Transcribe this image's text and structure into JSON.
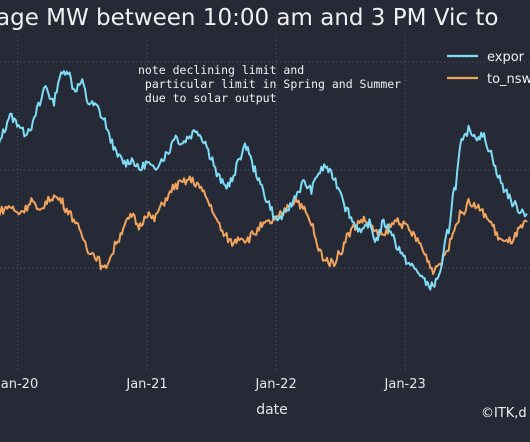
{
  "chart_data": {
    "type": "line",
    "title": "age MW between 10:00 am and 3 PM Vic to",
    "xlabel": "date",
    "ylabel": "",
    "x_ticks": [
      "Jan-20",
      "Jan-21",
      "Jan-22",
      "Jan-23"
    ],
    "x_range": [
      "2019-11-01",
      "2023-12-20"
    ],
    "y_range": [
      0,
      100
    ],
    "grid": true,
    "legend_position": "top-right",
    "annotation": "note declining limit and\n particular limit in Spring and Summer\n due to solar output",
    "credit": "©ITK,d",
    "series": [
      {
        "name": "expor",
        "color": "#7fdcf5",
        "points": [
          [
            "2019-11-01",
            64
          ],
          [
            "2019-11-20",
            71
          ],
          [
            "2019-12-10",
            76
          ],
          [
            "2020-01-01",
            74
          ],
          [
            "2020-01-20",
            71
          ],
          [
            "2020-02-10",
            73
          ],
          [
            "2020-03-01",
            79
          ],
          [
            "2020-03-20",
            85
          ],
          [
            "2020-04-10",
            80
          ],
          [
            "2020-05-01",
            88
          ],
          [
            "2020-05-20",
            90
          ],
          [
            "2020-06-10",
            84
          ],
          [
            "2020-07-01",
            86
          ],
          [
            "2020-07-20",
            80
          ],
          [
            "2020-08-10",
            79
          ],
          [
            "2020-09-01",
            75
          ],
          [
            "2020-09-20",
            69
          ],
          [
            "2020-10-10",
            64
          ],
          [
            "2020-11-01",
            62
          ],
          [
            "2020-11-20",
            63
          ],
          [
            "2020-12-10",
            60
          ],
          [
            "2021-01-01",
            62
          ],
          [
            "2021-01-20",
            60
          ],
          [
            "2021-02-10",
            63
          ],
          [
            "2021-03-01",
            65
          ],
          [
            "2021-03-20",
            70
          ],
          [
            "2021-04-10",
            68
          ],
          [
            "2021-05-01",
            70
          ],
          [
            "2021-05-20",
            72
          ],
          [
            "2021-06-10",
            69
          ],
          [
            "2021-07-01",
            64
          ],
          [
            "2021-07-20",
            58
          ],
          [
            "2021-08-10",
            55
          ],
          [
            "2021-09-01",
            57
          ],
          [
            "2021-09-20",
            64
          ],
          [
            "2021-10-10",
            67
          ],
          [
            "2021-11-01",
            60
          ],
          [
            "2021-11-20",
            55
          ],
          [
            "2021-12-10",
            50
          ],
          [
            "2022-01-01",
            45
          ],
          [
            "2022-01-20",
            46
          ],
          [
            "2022-02-10",
            49
          ],
          [
            "2022-03-01",
            53
          ],
          [
            "2022-03-20",
            56
          ],
          [
            "2022-04-10",
            54
          ],
          [
            "2022-05-01",
            59
          ],
          [
            "2022-05-20",
            61
          ],
          [
            "2022-06-10",
            58
          ],
          [
            "2022-07-01",
            54
          ],
          [
            "2022-07-20",
            48
          ],
          [
            "2022-08-10",
            44
          ],
          [
            "2022-09-01",
            41
          ],
          [
            "2022-09-20",
            44
          ],
          [
            "2022-10-10",
            39
          ],
          [
            "2022-11-01",
            44
          ],
          [
            "2022-11-20",
            42
          ],
          [
            "2022-12-10",
            37
          ],
          [
            "2023-01-01",
            33
          ],
          [
            "2023-01-20",
            31
          ],
          [
            "2023-02-10",
            29
          ],
          [
            "2023-03-01",
            26
          ],
          [
            "2023-03-20",
            25
          ],
          [
            "2023-04-10",
            29
          ],
          [
            "2023-05-01",
            41
          ],
          [
            "2023-05-20",
            54
          ],
          [
            "2023-06-10",
            68
          ],
          [
            "2023-07-01",
            72
          ],
          [
            "2023-07-20",
            70
          ],
          [
            "2023-08-10",
            70
          ],
          [
            "2023-09-01",
            65
          ],
          [
            "2023-09-20",
            58
          ],
          [
            "2023-10-10",
            54
          ],
          [
            "2023-11-01",
            50
          ],
          [
            "2023-11-20",
            48
          ],
          [
            "2023-12-10",
            47
          ]
        ]
      },
      {
        "name": "to_nsw",
        "color": "#f0a45e",
        "points": [
          [
            "2019-11-01",
            46
          ],
          [
            "2019-11-20",
            48
          ],
          [
            "2019-12-10",
            49
          ],
          [
            "2020-01-01",
            47
          ],
          [
            "2020-01-20",
            48
          ],
          [
            "2020-02-10",
            51
          ],
          [
            "2020-03-01",
            47
          ],
          [
            "2020-03-20",
            50
          ],
          [
            "2020-04-10",
            52
          ],
          [
            "2020-05-01",
            51
          ],
          [
            "2020-05-20",
            48
          ],
          [
            "2020-06-10",
            45
          ],
          [
            "2020-07-01",
            40
          ],
          [
            "2020-07-20",
            36
          ],
          [
            "2020-08-10",
            34
          ],
          [
            "2020-09-01",
            30
          ],
          [
            "2020-09-20",
            34
          ],
          [
            "2020-10-10",
            39
          ],
          [
            "2020-11-01",
            44
          ],
          [
            "2020-11-20",
            46
          ],
          [
            "2020-12-10",
            43
          ],
          [
            "2021-01-01",
            47
          ],
          [
            "2021-01-20",
            45
          ],
          [
            "2021-02-10",
            49
          ],
          [
            "2021-03-01",
            52
          ],
          [
            "2021-03-20",
            55
          ],
          [
            "2021-04-10",
            56
          ],
          [
            "2021-05-01",
            57
          ],
          [
            "2021-05-20",
            56
          ],
          [
            "2021-06-10",
            53
          ],
          [
            "2021-07-01",
            49
          ],
          [
            "2021-07-20",
            44
          ],
          [
            "2021-08-10",
            40
          ],
          [
            "2021-09-01",
            38
          ],
          [
            "2021-09-20",
            40
          ],
          [
            "2021-10-10",
            39
          ],
          [
            "2021-11-01",
            41
          ],
          [
            "2021-11-20",
            43
          ],
          [
            "2021-12-10",
            44
          ],
          [
            "2022-01-01",
            45
          ],
          [
            "2022-01-20",
            47
          ],
          [
            "2022-02-10",
            50
          ],
          [
            "2022-03-01",
            51
          ],
          [
            "2022-03-20",
            48
          ],
          [
            "2022-04-10",
            44
          ],
          [
            "2022-05-01",
            36
          ],
          [
            "2022-05-20",
            33
          ],
          [
            "2022-06-10",
            32
          ],
          [
            "2022-07-01",
            35
          ],
          [
            "2022-07-20",
            40
          ],
          [
            "2022-08-10",
            43
          ],
          [
            "2022-09-01",
            45
          ],
          [
            "2022-09-20",
            44
          ],
          [
            "2022-10-10",
            41
          ],
          [
            "2022-11-01",
            40
          ],
          [
            "2022-11-20",
            43
          ],
          [
            "2022-12-10",
            45
          ],
          [
            "2023-01-01",
            43
          ],
          [
            "2023-01-20",
            41
          ],
          [
            "2023-02-10",
            38
          ],
          [
            "2023-03-01",
            34
          ],
          [
            "2023-03-20",
            30
          ],
          [
            "2023-04-10",
            32
          ],
          [
            "2023-05-01",
            36
          ],
          [
            "2023-05-20",
            43
          ],
          [
            "2023-06-10",
            47
          ],
          [
            "2023-07-01",
            50
          ],
          [
            "2023-07-20",
            49
          ],
          [
            "2023-08-10",
            47
          ],
          [
            "2023-09-01",
            44
          ],
          [
            "2023-09-20",
            40
          ],
          [
            "2023-10-10",
            38
          ],
          [
            "2023-11-01",
            39
          ],
          [
            "2023-11-20",
            42
          ],
          [
            "2023-12-10",
            44
          ]
        ]
      }
    ]
  }
}
